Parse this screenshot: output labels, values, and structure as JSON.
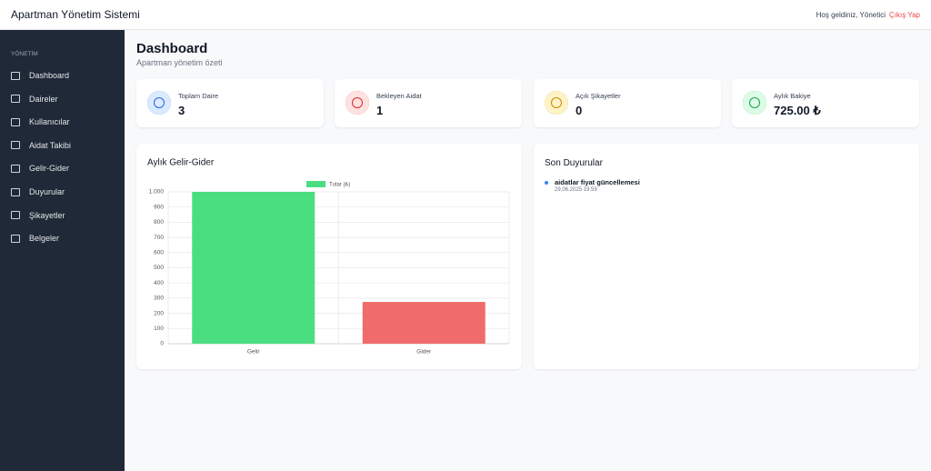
{
  "header": {
    "title": "Apartman Yönetim Sistemi",
    "greeting": "Hoş geldiniz, Yönetici",
    "logout": "Çıkış Yap"
  },
  "sidebar": {
    "section": "YÖNETİM",
    "items": [
      "Dashboard",
      "Daireler",
      "Kullanıcılar",
      "Aidat Takibi",
      "Gelir-Gider",
      "Duyurular",
      "Şikayetler",
      "Belgeler"
    ]
  },
  "page": {
    "title": "Dashboard",
    "subtitle": "Apartman yönetim özeti"
  },
  "stats": [
    {
      "label": "Toplam Daire",
      "value": "3"
    },
    {
      "label": "Bekleyen Aidat",
      "value": "1"
    },
    {
      "label": "Açık Şikayetler",
      "value": "0"
    },
    {
      "label": "Aylık Bakiye",
      "value": "725.00 ₺"
    }
  ],
  "chart_data": {
    "type": "bar",
    "title": "Aylık Gelir-Gider",
    "categories": [
      "Gelir",
      "Gider"
    ],
    "series": [
      {
        "name": "Tutar (₺)",
        "colors": [
          "#4ade80",
          "#f06b6b"
        ],
        "values": [
          1000,
          275
        ]
      }
    ],
    "ylim": [
      0,
      1000
    ],
    "yticks": [
      0,
      100,
      200,
      300,
      400,
      500,
      600,
      700,
      800,
      900,
      {
        "value": 1000,
        "label": "1.000"
      }
    ],
    "grid": true
  },
  "announcements": {
    "title": "Son Duyurular",
    "items": [
      {
        "title": "aidatlar fiyat güncellemesi",
        "date": "29.06.2025 19:59"
      }
    ]
  }
}
